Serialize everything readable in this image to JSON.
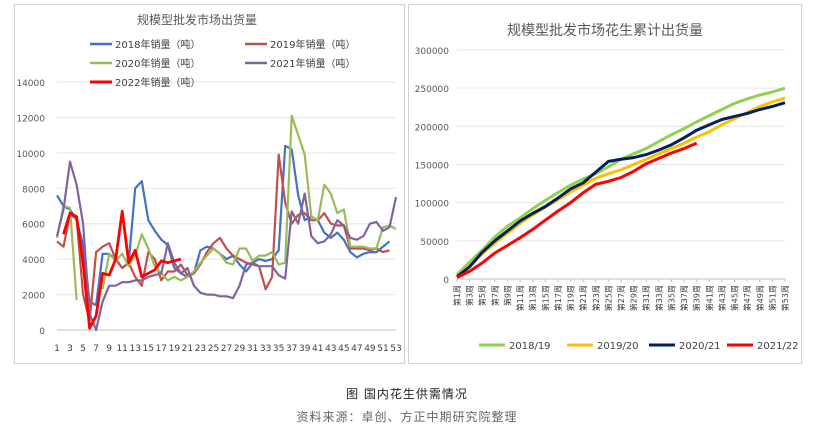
{
  "figure": {
    "caption": "图  国内花生供需情况",
    "source": "资料来源：卓创、方正中期研究院整理"
  },
  "chart_data": [
    {
      "type": "line",
      "title": "规模型批发市场出货量",
      "ylim": [
        0,
        14000
      ],
      "yticks": [
        "0",
        "2000",
        "4000",
        "6000",
        "8000",
        "10000",
        "12000",
        "14000"
      ],
      "xticks": [
        "1",
        "3",
        "5",
        "7",
        "9",
        "11",
        "13",
        "15",
        "17",
        "19",
        "21",
        "23",
        "25",
        "27",
        "29",
        "31",
        "33",
        "35",
        "37",
        "39",
        "41",
        "43",
        "45",
        "47",
        "49",
        "51",
        "53"
      ],
      "legend_position": "top",
      "series": [
        {
          "name": "2018年销量（吨）",
          "color": "#4472c4",
          "x": [
            1,
            2,
            3,
            4,
            5,
            6,
            7,
            8,
            9,
            10,
            11,
            12,
            13,
            14,
            15,
            16,
            17,
            18,
            19,
            20,
            21,
            22,
            23,
            24,
            25,
            26,
            27,
            28,
            29,
            30,
            31,
            32,
            33,
            34,
            35,
            36,
            37,
            38,
            39,
            40,
            41,
            42,
            43,
            44,
            45,
            46,
            47,
            48,
            49,
            50,
            51,
            52
          ],
          "values": [
            7600,
            7000,
            6800,
            6200,
            4800,
            1600,
            1400,
            4300,
            4300,
            4000,
            3500,
            3800,
            8000,
            8400,
            6200,
            5600,
            5100,
            4800,
            3500,
            3200,
            3000,
            3200,
            4500,
            4700,
            4600,
            4300,
            4000,
            4200,
            3700,
            3300,
            3800,
            4000,
            3900,
            4000,
            4500,
            10400,
            10200,
            7600,
            6200,
            6400,
            6200,
            5500,
            5200,
            5500,
            5100,
            4400,
            4100,
            4300,
            4400,
            4400,
            4700,
            5000
          ]
        },
        {
          "name": "2019年销量（吨）",
          "color": "#c0504d",
          "x": [
            1,
            2,
            3,
            4,
            5,
            6,
            7,
            8,
            9,
            10,
            11,
            12,
            13,
            14,
            15,
            16,
            17,
            18,
            19,
            20,
            21,
            22,
            23,
            24,
            25,
            26,
            27,
            28,
            29,
            30,
            31,
            32,
            33,
            34,
            35,
            36,
            37,
            38,
            39,
            40,
            41,
            42,
            43,
            44,
            45,
            46,
            47,
            48,
            49,
            50,
            51,
            52
          ],
          "values": [
            5000,
            4700,
            6500,
            6300,
            2000,
            500,
            4400,
            4700,
            4900,
            4000,
            3500,
            3800,
            3000,
            2500,
            4400,
            4000,
            2800,
            3300,
            3300,
            3700,
            3100,
            3200,
            3700,
            4400,
            4900,
            5200,
            4600,
            4200,
            4000,
            3800,
            3700,
            3600,
            2300,
            3000,
            9900,
            7200,
            6000,
            6500,
            6600,
            6200,
            6200,
            6600,
            6000,
            5900,
            5900,
            4600,
            4600,
            4600,
            4500,
            4600,
            4400,
            4500
          ]
        },
        {
          "name": "2020年销量（吨）",
          "color": "#9bbb59",
          "x": [
            1,
            2,
            3,
            4,
            5,
            6,
            7,
            8,
            9,
            10,
            11,
            12,
            13,
            14,
            15,
            16,
            17,
            18,
            19,
            20,
            21,
            22,
            23,
            24,
            25,
            26,
            27,
            28,
            29,
            30,
            31,
            32,
            33,
            34,
            35,
            36,
            37,
            38,
            39,
            40,
            41,
            42,
            43,
            44,
            45,
            46,
            47,
            48,
            49,
            50,
            51,
            52,
            53
          ],
          "values": [
            5200,
            7000,
            6900,
            1700,
            null,
            null,
            null,
            2300,
            4300,
            3900,
            4300,
            3600,
            4200,
            5400,
            4600,
            3600,
            3200,
            2800,
            3000,
            2800,
            3000,
            3300,
            3800,
            4200,
            4600,
            4300,
            3800,
            3700,
            4600,
            4600,
            3900,
            4200,
            4200,
            4400,
            3700,
            3800,
            12100,
            11000,
            9900,
            6400,
            6200,
            8200,
            7700,
            6600,
            6800,
            4700,
            4700,
            4700,
            4600,
            4600,
            5800,
            5900,
            5700
          ]
        },
        {
          "name": "2021年销量（吨）",
          "color": "#8064a2",
          "x": [
            1,
            2,
            3,
            4,
            5,
            6,
            7,
            8,
            9,
            10,
            11,
            12,
            13,
            14,
            15,
            16,
            17,
            18,
            19,
            20,
            21,
            22,
            23,
            24,
            25,
            26,
            27,
            28,
            29,
            30,
            31,
            32,
            33,
            34,
            35,
            36,
            37,
            38,
            39,
            40,
            41,
            42,
            43,
            44,
            45,
            46,
            47,
            48,
            49,
            50,
            51,
            52,
            53
          ],
          "values": [
            5300,
            6800,
            9500,
            8200,
            6000,
            900,
            0,
            1600,
            2500,
            2500,
            2700,
            2700,
            2800,
            2800,
            3000,
            3100,
            3200,
            4900,
            3800,
            3200,
            3500,
            2500,
            2100,
            2000,
            2000,
            1900,
            1900,
            1800,
            2500,
            3700,
            3800,
            3600,
            3600,
            3600,
            3100,
            2900,
            6700,
            6000,
            7700,
            5300,
            4900,
            5000,
            5400,
            6200,
            5900,
            5200,
            5100,
            5300,
            6000,
            6100,
            5600,
            5800,
            7500
          ]
        },
        {
          "name": "2022年销量（吨）",
          "color": "#ff0000",
          "x": [
            2,
            3,
            4,
            5,
            6,
            7,
            8,
            9,
            10,
            11,
            12,
            13,
            14,
            15,
            16,
            17,
            18,
            19,
            20
          ],
          "values": [
            5400,
            6600,
            6400,
            3800,
            100,
            800,
            3200,
            3100,
            4000,
            6700,
            3800,
            4500,
            3000,
            3200,
            3400,
            3900,
            3800,
            3900,
            4000
          ]
        }
      ]
    },
    {
      "type": "line",
      "title": "规模型批发市场花生累计出货量",
      "ylim": [
        0,
        300000
      ],
      "yticks": [
        "0",
        "50000",
        "100000",
        "150000",
        "200000",
        "250000",
        "300000"
      ],
      "categories": [
        "第1周",
        "第3周",
        "第5周",
        "第7周",
        "第9周",
        "第11周",
        "第13周",
        "第15周",
        "第17周",
        "第19周",
        "第21周",
        "第23周",
        "第25周",
        "第27周",
        "第29周",
        "第31周",
        "第33周",
        "第35周",
        "第37周",
        "第39周",
        "第41周",
        "第43周",
        "第45周",
        "第47周",
        "第49周",
        "第51周",
        "第53周"
      ],
      "legend_position": "bottom",
      "series": [
        {
          "name": "2018/19",
          "color": "#92d050",
          "x": [
            1,
            3,
            5,
            7,
            9,
            11,
            13,
            15,
            17,
            19,
            21,
            23,
            25,
            27,
            29,
            31,
            33,
            35,
            37,
            39,
            41,
            43,
            45,
            47,
            49,
            51,
            53
          ],
          "values": [
            6000,
            22000,
            38000,
            55000,
            69000,
            80000,
            92000,
            103000,
            113000,
            123000,
            131000,
            138000,
            147000,
            157000,
            164000,
            171000,
            180000,
            189000,
            197000,
            206000,
            214000,
            222000,
            230000,
            236000,
            241000,
            245000,
            250000
          ]
        },
        {
          "name": "2019/20",
          "color": "#ffc000",
          "x": [
            1,
            3,
            5,
            7,
            9,
            11,
            13,
            15,
            17,
            19,
            21,
            23,
            25,
            27,
            29,
            31,
            33,
            35,
            37,
            39,
            41,
            43,
            45,
            47,
            49,
            51,
            53
          ],
          "values": [
            4000,
            17000,
            33000,
            47000,
            60000,
            73000,
            84000,
            94000,
            104000,
            114000,
            123000,
            132000,
            138000,
            143000,
            150000,
            157000,
            164000,
            171000,
            178000,
            186000,
            193000,
            202000,
            210000,
            218000,
            226000,
            232000,
            237000
          ]
        },
        {
          "name": "2020/21",
          "color": "#002060",
          "x": [
            1,
            3,
            5,
            7,
            9,
            11,
            13,
            15,
            17,
            19,
            21,
            23,
            25,
            27,
            29,
            31,
            33,
            35,
            37,
            39,
            41,
            43,
            45,
            47,
            49,
            51,
            53
          ],
          "values": [
            3000,
            16000,
            35000,
            50000,
            63000,
            76000,
            86000,
            95000,
            106000,
            118000,
            126000,
            140000,
            154000,
            157000,
            159000,
            163000,
            169000,
            176000,
            185000,
            195000,
            202000,
            209000,
            213000,
            217000,
            222000,
            226000,
            231000
          ]
        },
        {
          "name": "2021/22",
          "color": "#ff0000",
          "x": [
            1,
            3,
            5,
            7,
            9,
            11,
            13,
            15,
            17,
            19,
            21,
            23,
            25,
            27,
            29,
            31,
            33,
            35,
            37,
            39
          ],
          "values": [
            2000,
            10000,
            21000,
            34000,
            44000,
            54000,
            65000,
            77000,
            89000,
            100000,
            113000,
            124000,
            128000,
            133000,
            141000,
            151000,
            158000,
            165000,
            171000,
            178000
          ]
        }
      ]
    }
  ]
}
